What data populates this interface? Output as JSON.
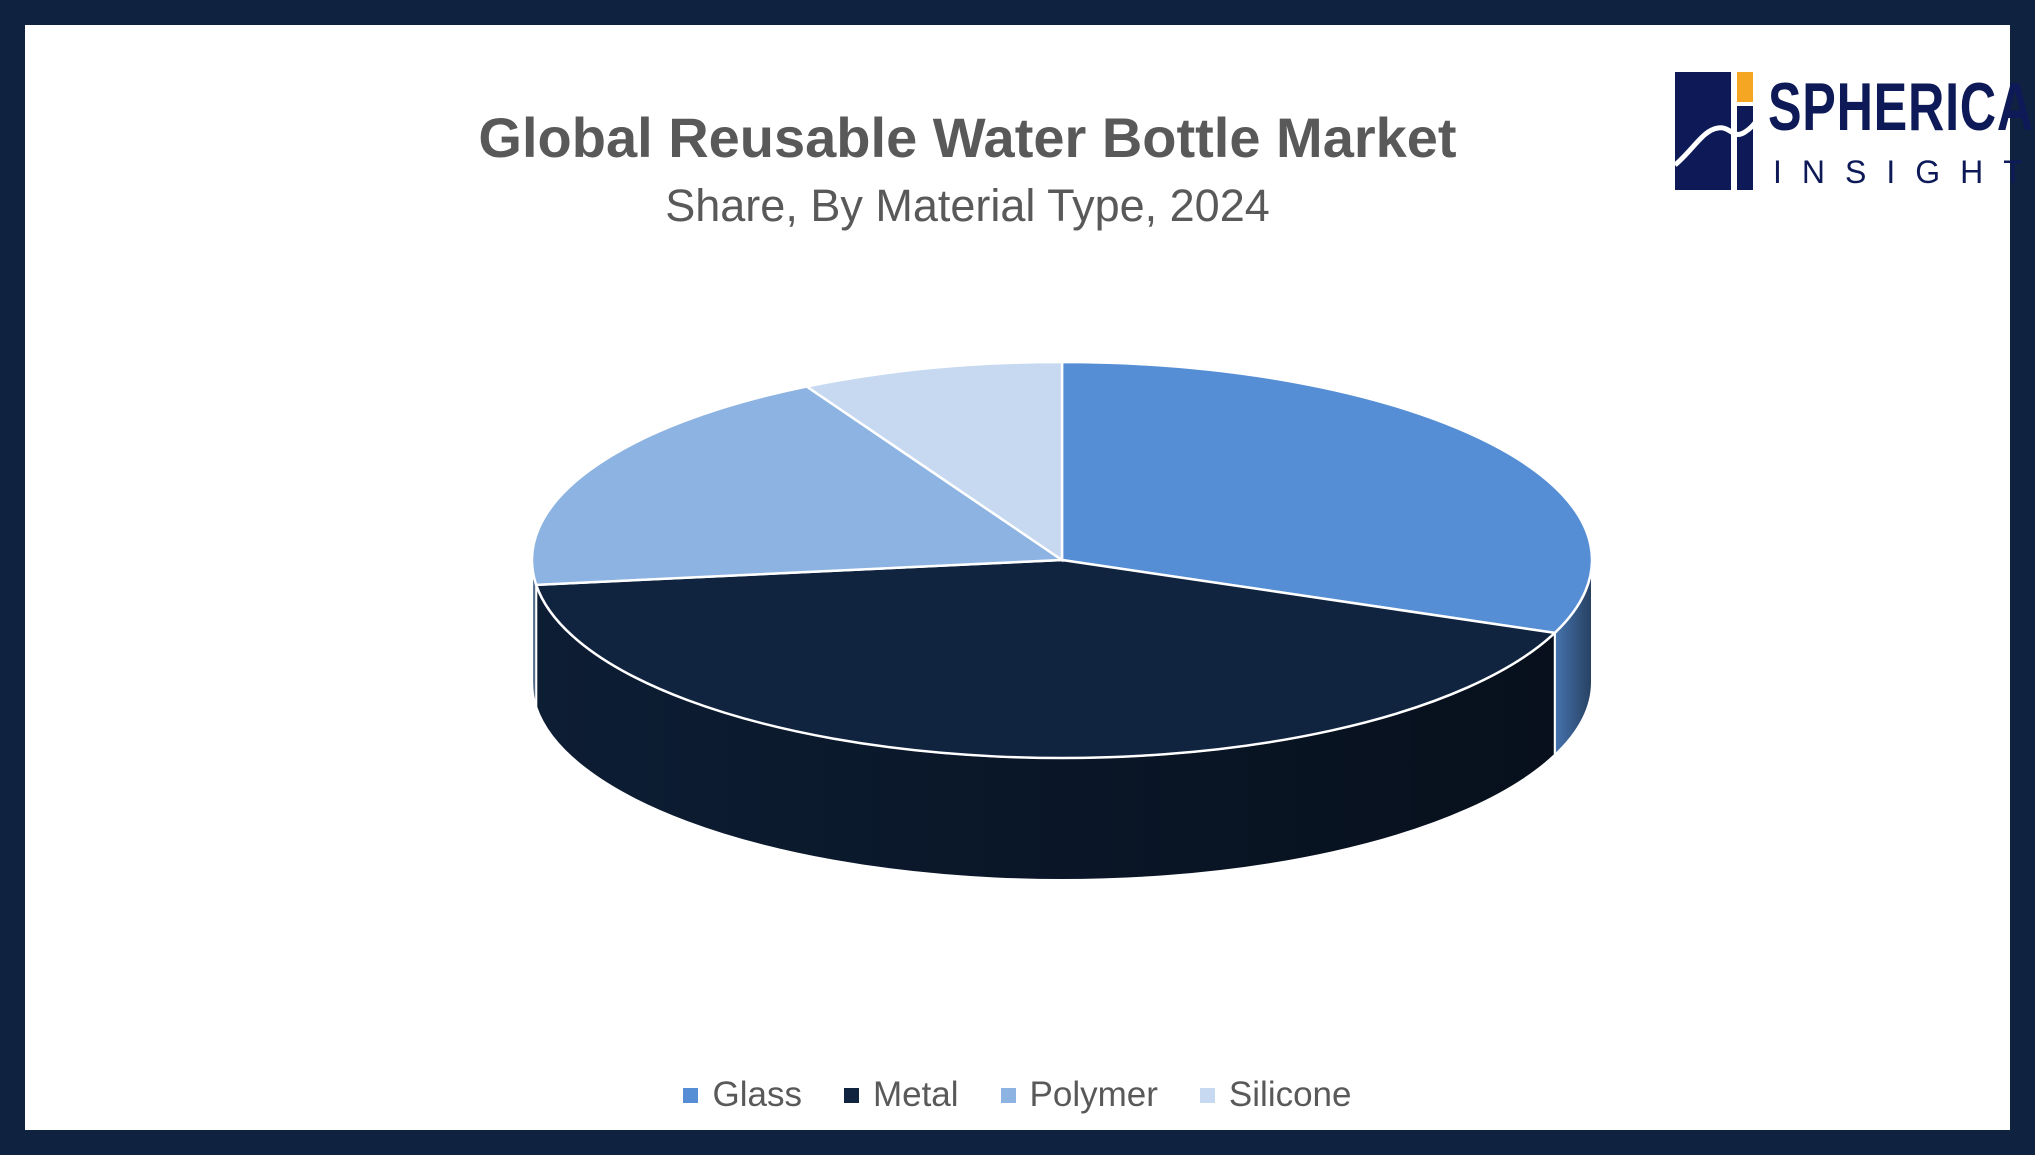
{
  "chart_data": {
    "type": "pie",
    "title": "Global Reusable Water Bottle Market",
    "subtitle": "Share, By Material Type, 2024",
    "categories": [
      "Glass",
      "Metal",
      "Polymer",
      "Silicone"
    ],
    "values": [
      31,
      42,
      19,
      8
    ],
    "colors": [
      "#558ed5",
      "#10233f",
      "#8db3e2",
      "#c6d9f0"
    ],
    "style": "3d",
    "legend_position": "bottom"
  },
  "brand": {
    "line1": "SPHERICAL",
    "line2": "INSIGHTS",
    "colors": {
      "navy": "#0d1a57",
      "accent": "#f5a623"
    }
  }
}
